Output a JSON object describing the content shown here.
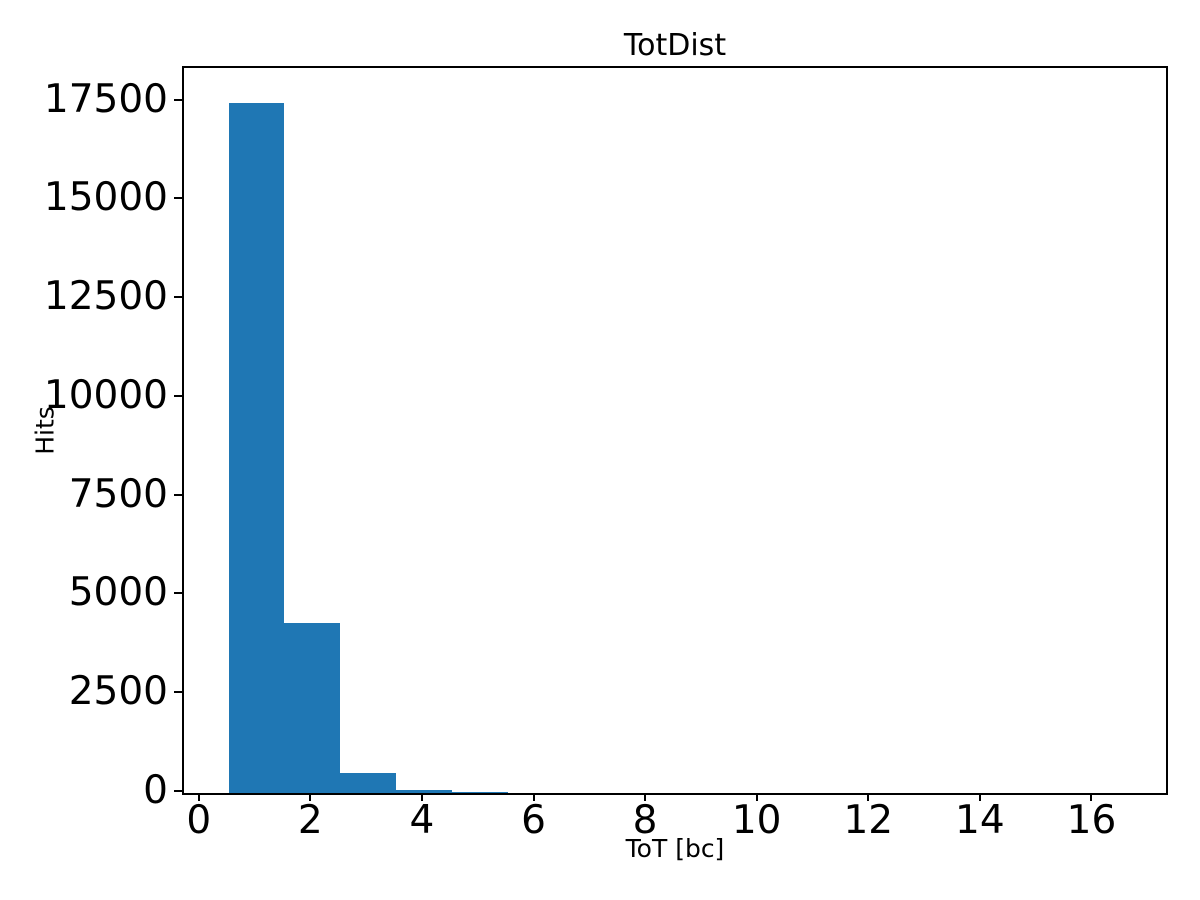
{
  "chart_data": {
    "type": "bar",
    "subtype": "histogram",
    "title": "TotDist",
    "xlabel": "ToT [bc]",
    "ylabel": "Hits",
    "bar_color": "#1f77b4",
    "axis_color": "#000000",
    "background_color": "#ffffff",
    "grid": false,
    "legend": null,
    "xlim": [
      -0.3,
      17.3
    ],
    "ylim": [
      0,
      18354
    ],
    "xticks": [
      0,
      2,
      4,
      6,
      8,
      10,
      12,
      14,
      16
    ],
    "yticks": [
      0,
      2500,
      5000,
      7500,
      10000,
      12500,
      15000,
      17500
    ],
    "bin_width": 1,
    "bin_centers": [
      1,
      2,
      3,
      4,
      5,
      6,
      7,
      8,
      9,
      10,
      11,
      12,
      13,
      14,
      15,
      16
    ],
    "bin_edges": [
      0.5,
      1.5,
      2.5,
      3.5,
      4.5,
      5.5,
      6.5,
      7.5,
      8.5,
      9.5,
      10.5,
      11.5,
      12.5,
      13.5,
      14.5,
      15.5,
      16.5
    ],
    "counts": [
      17480,
      4300,
      510,
      80,
      30,
      0,
      0,
      0,
      0,
      0,
      0,
      0,
      0,
      0,
      0,
      0
    ]
  }
}
